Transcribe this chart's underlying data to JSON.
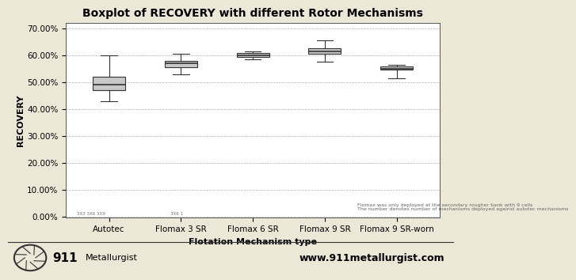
{
  "title": "Boxplot of RECOVERY with different Rotor Mechanisms",
  "xlabel": "Flotation Mechanism type",
  "ylabel": "RECOVERY",
  "categories": [
    "Autotec",
    "Flomax 3 SR",
    "Flomax 6 SR",
    "Flomax 9 SR",
    "Flomax 9 SR-worn"
  ],
  "boxes": [
    {
      "whislo": 0.43,
      "q1": 0.47,
      "med": 0.49,
      "q3": 0.52,
      "whishi": 0.6
    },
    {
      "whislo": 0.53,
      "q1": 0.555,
      "med": 0.57,
      "q3": 0.58,
      "whishi": 0.605
    },
    {
      "whislo": 0.585,
      "q1": 0.595,
      "med": 0.6,
      "q3": 0.607,
      "whishi": 0.615
    },
    {
      "whislo": 0.575,
      "q1": 0.605,
      "med": 0.615,
      "q3": 0.625,
      "whishi": 0.655
    },
    {
      "whislo": 0.515,
      "q1": 0.545,
      "med": 0.55,
      "q3": 0.558,
      "whishi": 0.565
    }
  ],
  "ylim": [
    -0.005,
    0.72
  ],
  "yticks": [
    0.0,
    0.1,
    0.2,
    0.3,
    0.4,
    0.5,
    0.6,
    0.7
  ],
  "ytick_labels": [
    "0.00%",
    "10.00%",
    "20.00%",
    "30.00%",
    "40.00%",
    "50.00%",
    "60.00%",
    "70.00%"
  ],
  "box_color": "#c8c8c8",
  "box_edge_color": "#333333",
  "median_color": "#333333",
  "whisker_color": "#333333",
  "cap_color": "#333333",
  "bg_color": "#ece8d8",
  "plot_bg_color": "#ffffff",
  "grid_color": "#aaaaaa",
  "annotation1": "Flomax was only deployed at the secondary rougher bank with 9 cells",
  "annotation2": "The number denotes number of mechanisms deployed against autotec mechanisms",
  "annotation3a": "3X3 3X6 3X9",
  "annotation3b": "3X6 1",
  "footer_left_bold": "911",
  "footer_left_normal": "Metallurgist",
  "footer_right": "www.911metallurgist.com",
  "title_fontsize": 10,
  "axis_label_fontsize": 8,
  "tick_fontsize": 7.5
}
